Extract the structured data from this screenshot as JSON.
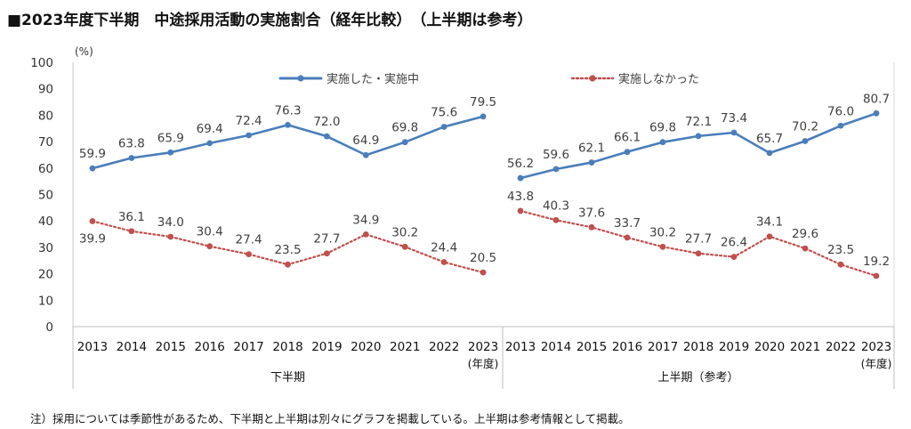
{
  "title": "■2023年度下半期　中途採用活動の実施割合（経年比較）　（上半期は参考）",
  "note": "注）採用については季節性があるため、下半期と上半期は別々にグラフを掲載している。上半期は参考情報として掲載。",
  "colors": {
    "implemented": "#4A7EBB",
    "not_implemented": "#C0504D"
  },
  "chart_data": {
    "type": "line",
    "yunit": "(%)",
    "ylim": [
      0,
      100
    ],
    "yticks": [
      0,
      10,
      20,
      30,
      40,
      50,
      60,
      70,
      80,
      90,
      100
    ],
    "xunit": "(年度)",
    "legend": [
      "実施した・実施中",
      "実施しなかった"
    ],
    "panels": [
      {
        "label": "下半期",
        "categories": [
          "2013",
          "2014",
          "2015",
          "2016",
          "2017",
          "2018",
          "2019",
          "2020",
          "2021",
          "2022",
          "2023"
        ],
        "series": [
          {
            "name": "実施した・実施中",
            "values": [
              59.9,
              63.8,
              65.9,
              69.4,
              72.4,
              76.3,
              72.0,
              64.9,
              69.8,
              75.6,
              79.5
            ]
          },
          {
            "name": "実施しなかった",
            "values": [
              39.9,
              36.1,
              34.0,
              30.4,
              27.4,
              23.5,
              27.7,
              34.9,
              30.2,
              24.4,
              20.5
            ]
          }
        ]
      },
      {
        "label": "上半期（参考）",
        "categories": [
          "2013",
          "2014",
          "2015",
          "2016",
          "2017",
          "2018",
          "2019",
          "2020",
          "2021",
          "2022",
          "2023"
        ],
        "series": [
          {
            "name": "実施した・実施中",
            "values": [
              56.2,
              59.6,
              62.1,
              66.1,
              69.8,
              72.1,
              73.4,
              65.7,
              70.2,
              76.0,
              80.7
            ]
          },
          {
            "name": "実施しなかった",
            "values": [
              43.8,
              40.3,
              37.6,
              33.7,
              30.2,
              27.7,
              26.4,
              34.1,
              29.6,
              23.5,
              19.2
            ]
          }
        ]
      }
    ]
  }
}
